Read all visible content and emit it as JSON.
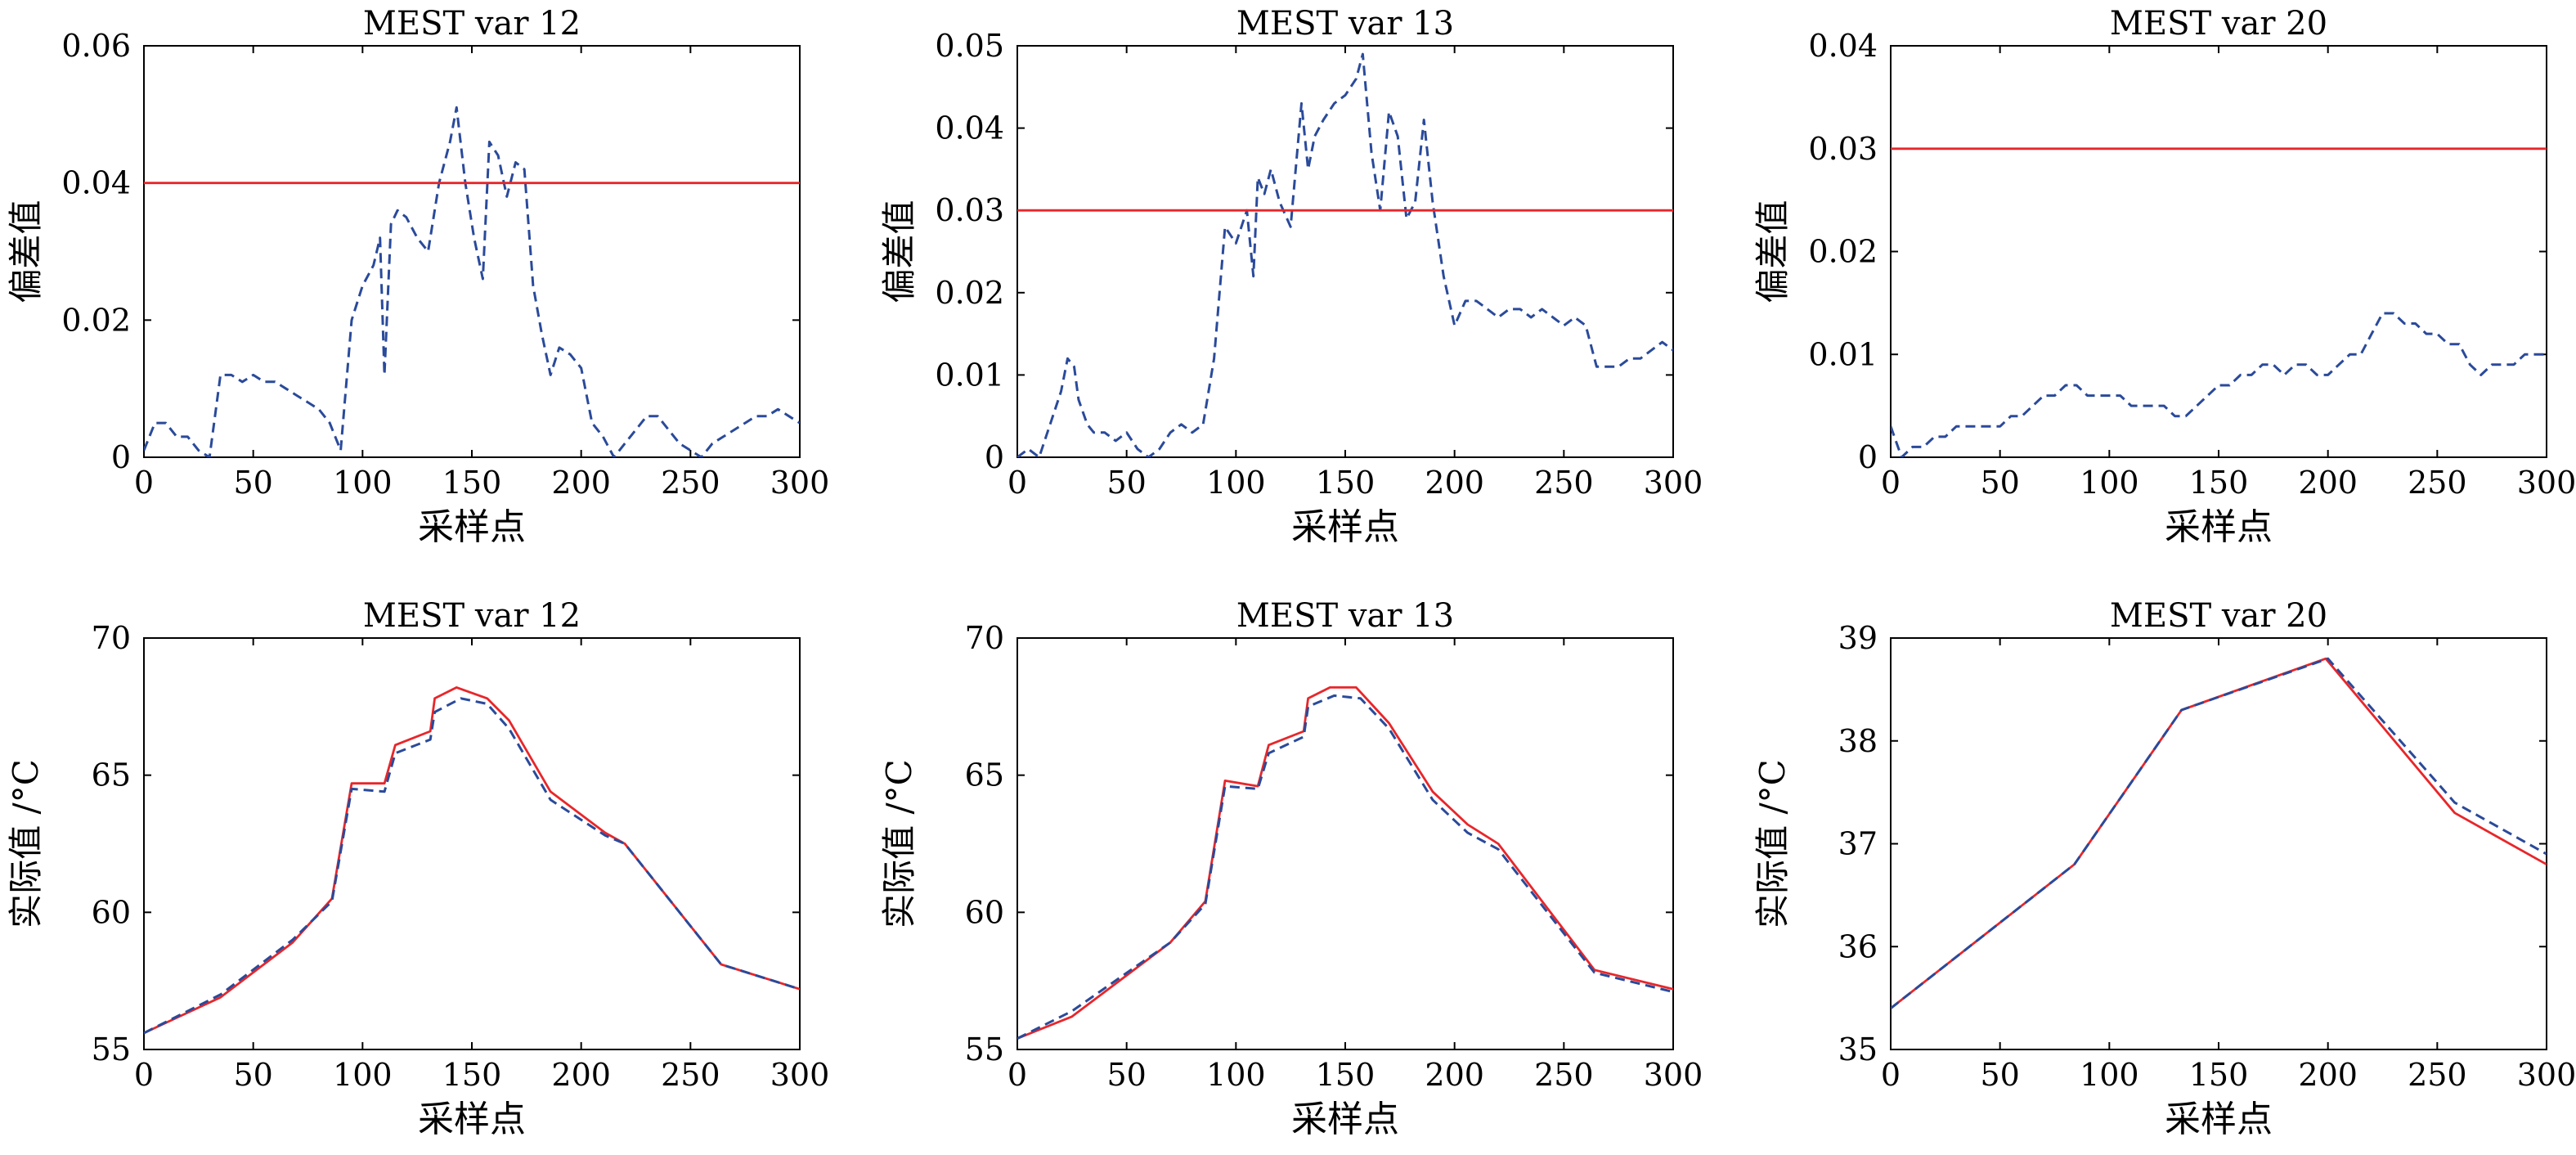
{
  "figure": {
    "rows": 2,
    "cols": 3
  },
  "chart_data": [
    {
      "type": "line",
      "title": "MEST var 12",
      "xlabel": "采样点",
      "ylabel": "偏差值",
      "xlim": [
        0,
        300
      ],
      "ylim": [
        0,
        0.06
      ],
      "xticks": [
        "0",
        "50",
        "100",
        "150",
        "200",
        "250",
        "300"
      ],
      "yticks": [
        "0",
        "0.02",
        "0.04",
        "0.06"
      ],
      "grid": false,
      "legend": "none",
      "series": [
        {
          "style": "dashed",
          "color": "#2a4a9a",
          "x": [
            0,
            5,
            10,
            15,
            20,
            25,
            30,
            35,
            40,
            45,
            50,
            55,
            60,
            65,
            70,
            75,
            80,
            85,
            90,
            95,
            100,
            105,
            108,
            110,
            113,
            116,
            120,
            125,
            130,
            135,
            140,
            143,
            147,
            151,
            155,
            158,
            162,
            166,
            170,
            174,
            178,
            182,
            186,
            190,
            195,
            200,
            205,
            210,
            215,
            220,
            225,
            230,
            235,
            240,
            245,
            250,
            255,
            260,
            265,
            270,
            275,
            280,
            285,
            290,
            295,
            300
          ],
          "y": [
            0.001,
            0.005,
            0.005,
            0.003,
            0.003,
            0.001,
            0.0,
            0.012,
            0.012,
            0.011,
            0.012,
            0.011,
            0.011,
            0.01,
            0.009,
            0.008,
            0.007,
            0.005,
            0.001,
            0.02,
            0.025,
            0.028,
            0.032,
            0.012,
            0.034,
            0.036,
            0.035,
            0.032,
            0.03,
            0.04,
            0.046,
            0.051,
            0.04,
            0.032,
            0.026,
            0.046,
            0.044,
            0.038,
            0.043,
            0.042,
            0.025,
            0.018,
            0.012,
            0.016,
            0.015,
            0.013,
            0.005,
            0.003,
            0.0,
            0.002,
            0.004,
            0.006,
            0.006,
            0.004,
            0.002,
            0.001,
            0.0,
            0.002,
            0.003,
            0.004,
            0.005,
            0.006,
            0.006,
            0.007,
            0.006,
            0.005
          ]
        },
        {
          "name": "",
          "style": "solid",
          "color": "#e8262a",
          "x": [
            0,
            300
          ],
          "y": [
            0.04,
            0.04
          ]
        }
      ]
    },
    {
      "type": "line",
      "title": "MEST var 13",
      "xlabel": "采样点",
      "ylabel": "偏差值",
      "xlim": [
        0,
        300
      ],
      "ylim": [
        0,
        0.05
      ],
      "xticks": [
        "0",
        "50",
        "100",
        "150",
        "200",
        "250",
        "300"
      ],
      "yticks": [
        "0",
        "0.01",
        "0.02",
        "0.03",
        "0.04",
        "0.05"
      ],
      "grid": false,
      "legend": "none",
      "series": [
        {
          "style": "dashed",
          "color": "#2a4a9a",
          "x": [
            0,
            5,
            10,
            15,
            20,
            23,
            26,
            28,
            32,
            35,
            40,
            45,
            50,
            55,
            60,
            65,
            70,
            75,
            80,
            85,
            90,
            95,
            100,
            105,
            108,
            110,
            113,
            116,
            120,
            125,
            130,
            133,
            136,
            140,
            145,
            150,
            155,
            158,
            162,
            166,
            170,
            174,
            178,
            182,
            186,
            190,
            195,
            200,
            205,
            210,
            215,
            220,
            225,
            230,
            235,
            240,
            245,
            250,
            255,
            260,
            265,
            270,
            275,
            280,
            285,
            290,
            295,
            300
          ],
          "y": [
            0.0,
            0.001,
            0.0,
            0.004,
            0.008,
            0.012,
            0.011,
            0.007,
            0.004,
            0.003,
            0.003,
            0.002,
            0.003,
            0.001,
            0.0,
            0.001,
            0.003,
            0.004,
            0.003,
            0.004,
            0.012,
            0.028,
            0.026,
            0.03,
            0.022,
            0.034,
            0.032,
            0.035,
            0.031,
            0.028,
            0.043,
            0.035,
            0.039,
            0.041,
            0.043,
            0.044,
            0.046,
            0.049,
            0.037,
            0.03,
            0.042,
            0.039,
            0.029,
            0.031,
            0.041,
            0.031,
            0.022,
            0.016,
            0.019,
            0.019,
            0.018,
            0.017,
            0.018,
            0.018,
            0.017,
            0.018,
            0.017,
            0.016,
            0.017,
            0.016,
            0.011,
            0.011,
            0.011,
            0.012,
            0.012,
            0.013,
            0.014,
            0.013
          ]
        },
        {
          "name": "",
          "style": "solid",
          "color": "#e8262a",
          "x": [
            0,
            300
          ],
          "y": [
            0.03,
            0.03
          ]
        }
      ]
    },
    {
      "type": "line",
      "title": "MEST var 20",
      "xlabel": "采样点",
      "ylabel": "偏差值",
      "xlim": [
        0,
        300
      ],
      "ylim": [
        0,
        0.04
      ],
      "xticks": [
        "0",
        "50",
        "100",
        "150",
        "200",
        "250",
        "300"
      ],
      "yticks": [
        "0",
        "0.01",
        "0.02",
        "0.03",
        "0.04"
      ],
      "grid": false,
      "legend": "none",
      "series": [
        {
          "style": "dashed",
          "color": "#2a4a9a",
          "x": [
            0,
            5,
            10,
            15,
            20,
            25,
            30,
            35,
            40,
            45,
            50,
            55,
            60,
            65,
            70,
            75,
            80,
            85,
            90,
            95,
            100,
            105,
            110,
            115,
            120,
            125,
            130,
            135,
            140,
            145,
            150,
            155,
            160,
            165,
            170,
            175,
            180,
            185,
            190,
            195,
            200,
            205,
            210,
            215,
            220,
            225,
            230,
            235,
            240,
            245,
            250,
            255,
            260,
            265,
            270,
            275,
            280,
            285,
            290,
            295,
            300
          ],
          "y": [
            0.003,
            0.0,
            0.001,
            0.001,
            0.002,
            0.002,
            0.003,
            0.003,
            0.003,
            0.003,
            0.003,
            0.004,
            0.004,
            0.005,
            0.006,
            0.006,
            0.007,
            0.007,
            0.006,
            0.006,
            0.006,
            0.006,
            0.005,
            0.005,
            0.005,
            0.005,
            0.004,
            0.004,
            0.005,
            0.006,
            0.007,
            0.007,
            0.008,
            0.008,
            0.009,
            0.009,
            0.008,
            0.009,
            0.009,
            0.008,
            0.008,
            0.009,
            0.01,
            0.01,
            0.012,
            0.014,
            0.014,
            0.013,
            0.013,
            0.012,
            0.012,
            0.011,
            0.011,
            0.009,
            0.008,
            0.009,
            0.009,
            0.009,
            0.01,
            0.01,
            0.01
          ]
        },
        {
          "name": "",
          "style": "solid",
          "color": "#e8262a",
          "x": [
            0,
            300
          ],
          "y": [
            0.03,
            0.03
          ]
        }
      ]
    },
    {
      "type": "line",
      "title": "MEST var 12",
      "xlabel": "采样点",
      "ylabel": "实际值 /°C",
      "xlim": [
        0,
        300
      ],
      "ylim": [
        55,
        70
      ],
      "xticks": [
        "0",
        "50",
        "100",
        "150",
        "200",
        "250",
        "300"
      ],
      "yticks": [
        "55",
        "60",
        "65",
        "70"
      ],
      "grid": false,
      "legend": "none",
      "series": [
        {
          "style": "solid",
          "color": "#e8262a",
          "x": [
            0,
            35,
            68,
            86,
            95,
            110,
            115,
            131,
            133,
            143,
            157,
            167,
            186,
            211,
            220,
            264,
            300
          ],
          "y": [
            55.6,
            56.9,
            58.9,
            60.5,
            64.7,
            64.7,
            66.1,
            66.6,
            67.8,
            68.2,
            67.8,
            67.0,
            64.4,
            62.9,
            62.5,
            58.1,
            57.2
          ]
        },
        {
          "style": "dashed",
          "color": "#2a4a9a",
          "x": [
            0,
            35,
            68,
            86,
            95,
            110,
            115,
            131,
            133,
            145,
            157,
            167,
            186,
            211,
            220,
            264,
            300
          ],
          "y": [
            55.6,
            57.0,
            59.0,
            60.4,
            64.5,
            64.4,
            65.8,
            66.3,
            67.3,
            67.8,
            67.6,
            66.7,
            64.1,
            62.8,
            62.5,
            58.1,
            57.2
          ]
        }
      ]
    },
    {
      "type": "line",
      "title": "MEST var 13",
      "xlabel": "采样点",
      "ylabel": "实际值 /°C",
      "xlim": [
        0,
        300
      ],
      "ylim": [
        55,
        70
      ],
      "xticks": [
        "0",
        "50",
        "100",
        "150",
        "200",
        "250",
        "300"
      ],
      "yticks": [
        "55",
        "60",
        "65",
        "70"
      ],
      "grid": false,
      "legend": "none",
      "series": [
        {
          "style": "solid",
          "color": "#e8262a",
          "x": [
            0,
            25,
            70,
            86,
            95,
            110,
            115,
            131,
            133,
            143,
            155,
            170,
            190,
            206,
            220,
            264,
            300
          ],
          "y": [
            55.4,
            56.2,
            58.9,
            60.4,
            64.8,
            64.6,
            66.1,
            66.6,
            67.8,
            68.2,
            68.2,
            66.9,
            64.4,
            63.2,
            62.5,
            57.9,
            57.2
          ]
        },
        {
          "style": "dashed",
          "color": "#2a4a9a",
          "x": [
            0,
            25,
            70,
            86,
            95,
            110,
            115,
            131,
            133,
            145,
            157,
            170,
            190,
            206,
            220,
            264,
            300
          ],
          "y": [
            55.4,
            56.4,
            58.9,
            60.3,
            64.6,
            64.5,
            65.8,
            66.4,
            67.5,
            67.9,
            67.8,
            66.7,
            64.1,
            62.9,
            62.3,
            57.8,
            57.1
          ]
        }
      ]
    },
    {
      "type": "line",
      "title": "MEST var 20",
      "xlabel": "采样点",
      "ylabel": "实际值 /°C",
      "xlim": [
        0,
        300
      ],
      "ylim": [
        35,
        39
      ],
      "xticks": [
        "0",
        "50",
        "100",
        "150",
        "200",
        "250",
        "300"
      ],
      "yticks": [
        "35",
        "36",
        "37",
        "38",
        "39"
      ],
      "grid": false,
      "legend": "none",
      "series": [
        {
          "style": "solid",
          "color": "#e8262a",
          "x": [
            0,
            84,
            133,
            199,
            258,
            300
          ],
          "y": [
            35.4,
            36.8,
            38.3,
            38.8,
            37.3,
            36.8
          ]
        },
        {
          "style": "dashed",
          "color": "#2a4a9a",
          "x": [
            0,
            84,
            133,
            200,
            258,
            300
          ],
          "y": [
            35.4,
            36.8,
            38.3,
            38.8,
            37.4,
            36.9
          ]
        }
      ]
    }
  ]
}
